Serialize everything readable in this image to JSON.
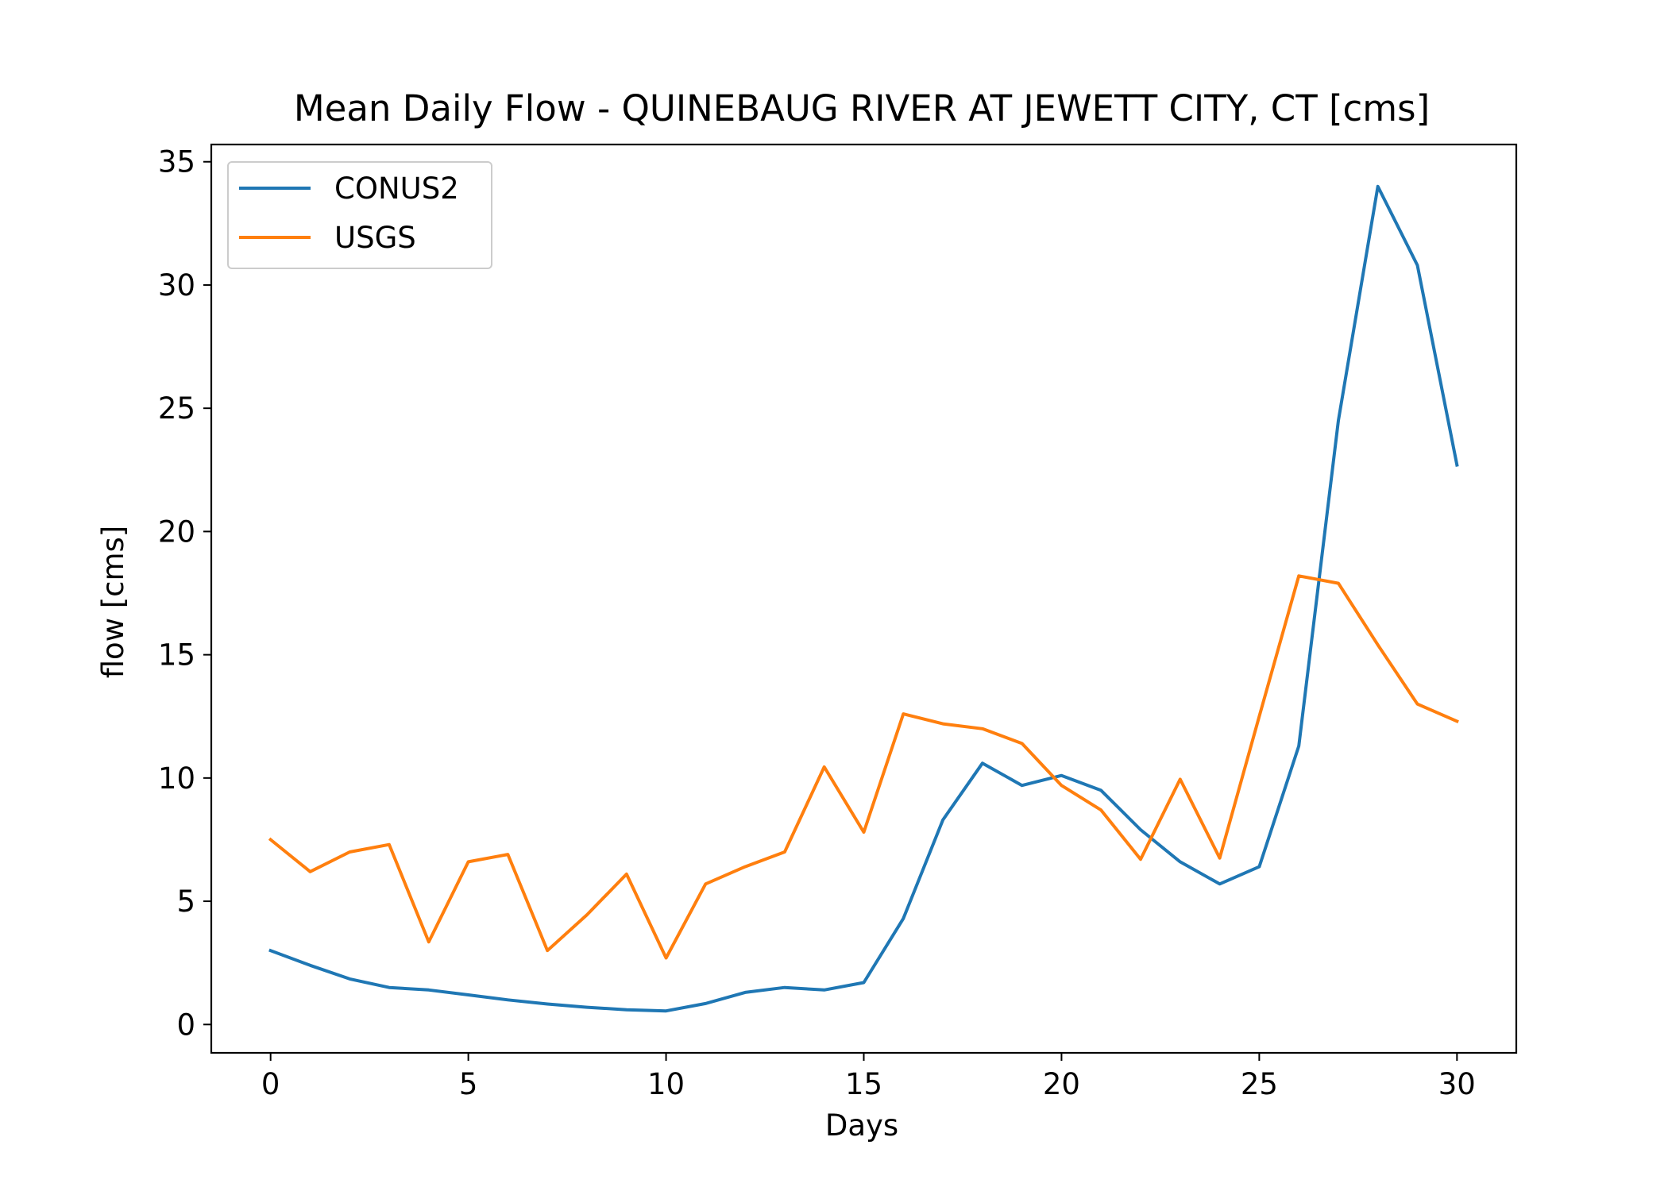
{
  "chart_data": {
    "type": "line",
    "title": "Mean Daily Flow - QUINEBAUG RIVER AT JEWETT CITY, CT [cms]",
    "xlabel": "Days",
    "ylabel": "flow [cms]",
    "xlim": [
      -1.5,
      31.5
    ],
    "ylim": [
      -1.15,
      35.7
    ],
    "xticks": [
      0,
      5,
      10,
      15,
      20,
      25,
      30
    ],
    "yticks": [
      0,
      5,
      10,
      15,
      20,
      25,
      30,
      35
    ],
    "grid": false,
    "legend_position": "top-left",
    "x": [
      0,
      1,
      2,
      3,
      4,
      5,
      6,
      7,
      8,
      9,
      10,
      11,
      12,
      13,
      14,
      15,
      16,
      17,
      18,
      19,
      20,
      21,
      22,
      23,
      24,
      25,
      26,
      27,
      28,
      29,
      30
    ],
    "series": [
      {
        "name": "CONUS2",
        "color": "#1f77b4",
        "values": [
          3.0,
          2.4,
          1.85,
          1.5,
          1.4,
          1.2,
          1.0,
          0.83,
          0.7,
          0.6,
          0.55,
          0.85,
          1.3,
          1.5,
          1.4,
          1.7,
          4.3,
          8.3,
          10.6,
          9.7,
          10.1,
          9.5,
          7.9,
          6.6,
          5.7,
          6.4,
          11.3,
          24.5,
          34.0,
          30.8,
          22.7
        ]
      },
      {
        "name": "USGS",
        "color": "#ff7f0e",
        "values": [
          7.5,
          6.2,
          7.0,
          7.3,
          3.35,
          6.6,
          6.9,
          3.0,
          4.45,
          6.1,
          2.7,
          5.7,
          6.4,
          7.0,
          10.45,
          7.8,
          12.6,
          12.2,
          12.0,
          11.4,
          9.7,
          8.7,
          6.7,
          9.95,
          6.75,
          12.5,
          18.2,
          17.9,
          15.4,
          13.0,
          12.3
        ]
      }
    ]
  }
}
